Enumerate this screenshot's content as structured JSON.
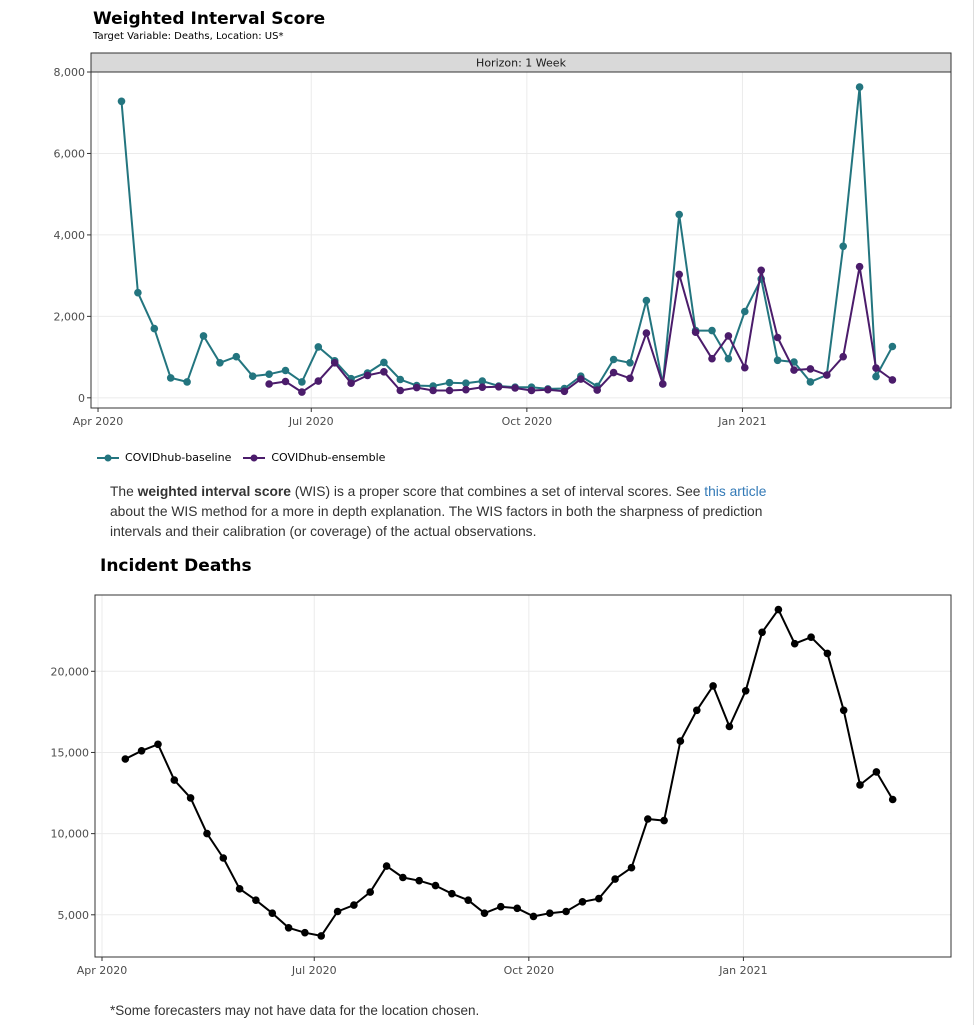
{
  "wis_section": {
    "title": "Weighted Interval Score",
    "subtitle": "Target Variable: Deaths, Location: US*",
    "facet_label": "Horizon: 1 Week"
  },
  "description": {
    "prefix": "The ",
    "bold": "weighted interval score",
    "middle": " (WIS) is a proper score that combines a set of interval scores. See ",
    "link_text": "this article",
    "suffix": " about the WIS method for a more in depth explanation. The WIS factors in both the sharpness of prediction intervals and their calibration (or coverage) of the actual observations."
  },
  "deaths_section": {
    "title": "Incident Deaths"
  },
  "footnote": "*Some forecasters may not have data for the location chosen.",
  "colors": {
    "baseline": "#23757f",
    "ensemble": "#4b1c6b",
    "deaths": "#000000",
    "strip": "#d9d9d9"
  },
  "chart_data": [
    {
      "type": "line",
      "title": "Weighted Interval Score",
      "subtitle": "Target Variable: Deaths, Location: US*",
      "facet": "Horizon: 1 Week",
      "xlabel": "",
      "ylabel": "",
      "x_ticks": [
        "2020-04-01",
        "2020-07-01",
        "2020-10-01",
        "2021-01-01"
      ],
      "x_tick_labels": [
        "Apr 2020",
        "Jul 2020",
        "Oct 2020",
        "Jan 2021"
      ],
      "x_range": [
        "2020-03-29",
        "2021-03-31"
      ],
      "y_ticks": [
        0,
        2000,
        4000,
        6000,
        8000
      ],
      "y_tick_labels": [
        "0",
        "2,000",
        "4,000",
        "6,000",
        "8,000"
      ],
      "ylim": [
        -250,
        8000
      ],
      "grid": true,
      "legend": "bottom",
      "series": [
        {
          "name": "COVIDhub-baseline",
          "color": "#23757f",
          "x": [
            "2020-04-11",
            "2020-04-18",
            "2020-04-25",
            "2020-05-02",
            "2020-05-09",
            "2020-05-16",
            "2020-05-23",
            "2020-05-30",
            "2020-06-06",
            "2020-06-13",
            "2020-06-20",
            "2020-06-27",
            "2020-07-04",
            "2020-07-11",
            "2020-07-18",
            "2020-07-25",
            "2020-08-01",
            "2020-08-08",
            "2020-08-15",
            "2020-08-22",
            "2020-08-29",
            "2020-09-05",
            "2020-09-12",
            "2020-09-19",
            "2020-09-26",
            "2020-10-03",
            "2020-10-10",
            "2020-10-17",
            "2020-10-24",
            "2020-10-31",
            "2020-11-07",
            "2020-11-14",
            "2020-11-21",
            "2020-11-28",
            "2020-12-05",
            "2020-12-12",
            "2020-12-19",
            "2020-12-26",
            "2021-01-02",
            "2021-01-09",
            "2021-01-16",
            "2021-01-23",
            "2021-01-30",
            "2021-02-06",
            "2021-02-13",
            "2021-02-20",
            "2021-02-27",
            "2021-03-06"
          ],
          "values": [
            7280,
            2580,
            1700,
            490,
            390,
            1520,
            860,
            1010,
            530,
            580,
            670,
            390,
            1250,
            910,
            470,
            610,
            870,
            450,
            300,
            290,
            370,
            360,
            410,
            290,
            260,
            260,
            220,
            230,
            530,
            280,
            940,
            860,
            2390,
            340,
            4500,
            1650,
            1650,
            960,
            2120,
            2920,
            920,
            880,
            390,
            560,
            3720,
            7630,
            520,
            1260
          ]
        },
        {
          "name": "COVIDhub-ensemble",
          "color": "#4b1c6b",
          "x": [
            "2020-06-13",
            "2020-06-20",
            "2020-06-27",
            "2020-07-04",
            "2020-07-11",
            "2020-07-18",
            "2020-07-25",
            "2020-08-01",
            "2020-08-08",
            "2020-08-15",
            "2020-08-22",
            "2020-08-29",
            "2020-09-05",
            "2020-09-12",
            "2020-09-19",
            "2020-09-26",
            "2020-10-03",
            "2020-10-10",
            "2020-10-17",
            "2020-10-24",
            "2020-10-31",
            "2020-11-07",
            "2020-11-14",
            "2020-11-21",
            "2020-11-28",
            "2020-12-05",
            "2020-12-12",
            "2020-12-19",
            "2020-12-26",
            "2021-01-02",
            "2021-01-09",
            "2021-01-16",
            "2021-01-23",
            "2021-01-30",
            "2021-02-06",
            "2021-02-13",
            "2021-02-20",
            "2021-02-27",
            "2021-03-06"
          ],
          "values": [
            340,
            400,
            140,
            410,
            860,
            360,
            550,
            640,
            180,
            250,
            180,
            180,
            200,
            260,
            270,
            240,
            180,
            200,
            160,
            460,
            190,
            620,
            480,
            1590,
            340,
            3030,
            1610,
            960,
            1520,
            740,
            3130,
            1480,
            680,
            710,
            560,
            1010,
            3220,
            730,
            440
          ]
        }
      ]
    },
    {
      "type": "line",
      "title": "Incident Deaths",
      "xlabel": "",
      "ylabel": "",
      "x_ticks": [
        "2020-04-01",
        "2020-07-01",
        "2020-10-01",
        "2021-01-01"
      ],
      "x_tick_labels": [
        "Apr 2020",
        "Jul 2020",
        "Oct 2020",
        "Jan 2021"
      ],
      "x_range": [
        "2020-03-29",
        "2021-03-31"
      ],
      "y_ticks": [
        5000,
        10000,
        15000,
        20000
      ],
      "y_tick_labels": [
        "5,000",
        "10,000",
        "15,000",
        "20,000"
      ],
      "ylim": [
        2400,
        24700
      ],
      "grid": true,
      "series": [
        {
          "color": "#000000",
          "x": [
            "2020-04-11",
            "2020-04-18",
            "2020-04-25",
            "2020-05-02",
            "2020-05-09",
            "2020-05-16",
            "2020-05-23",
            "2020-05-30",
            "2020-06-06",
            "2020-06-13",
            "2020-06-20",
            "2020-06-27",
            "2020-07-04",
            "2020-07-11",
            "2020-07-18",
            "2020-07-25",
            "2020-08-01",
            "2020-08-08",
            "2020-08-15",
            "2020-08-22",
            "2020-08-29",
            "2020-09-05",
            "2020-09-12",
            "2020-09-19",
            "2020-09-26",
            "2020-10-03",
            "2020-10-10",
            "2020-10-17",
            "2020-10-24",
            "2020-10-31",
            "2020-11-07",
            "2020-11-14",
            "2020-11-21",
            "2020-11-28",
            "2020-12-05",
            "2020-12-12",
            "2020-12-19",
            "2020-12-26",
            "2021-01-02",
            "2021-01-09",
            "2021-01-16",
            "2021-01-23",
            "2021-01-30",
            "2021-02-06",
            "2021-02-13",
            "2021-02-20",
            "2021-02-27",
            "2021-03-06"
          ],
          "values": [
            14600,
            15100,
            15500,
            13300,
            12200,
            10000,
            8500,
            6600,
            5900,
            5100,
            4200,
            3900,
            3700,
            5200,
            5600,
            6400,
            8000,
            7300,
            7100,
            6800,
            6300,
            5900,
            5100,
            5500,
            5400,
            4900,
            5100,
            5200,
            5800,
            6000,
            7200,
            7900,
            10900,
            10800,
            15700,
            17600,
            19100,
            16600,
            18800,
            22400,
            23800,
            21700,
            22100,
            21100,
            17600,
            13000,
            13800,
            12100
          ]
        }
      ]
    }
  ]
}
